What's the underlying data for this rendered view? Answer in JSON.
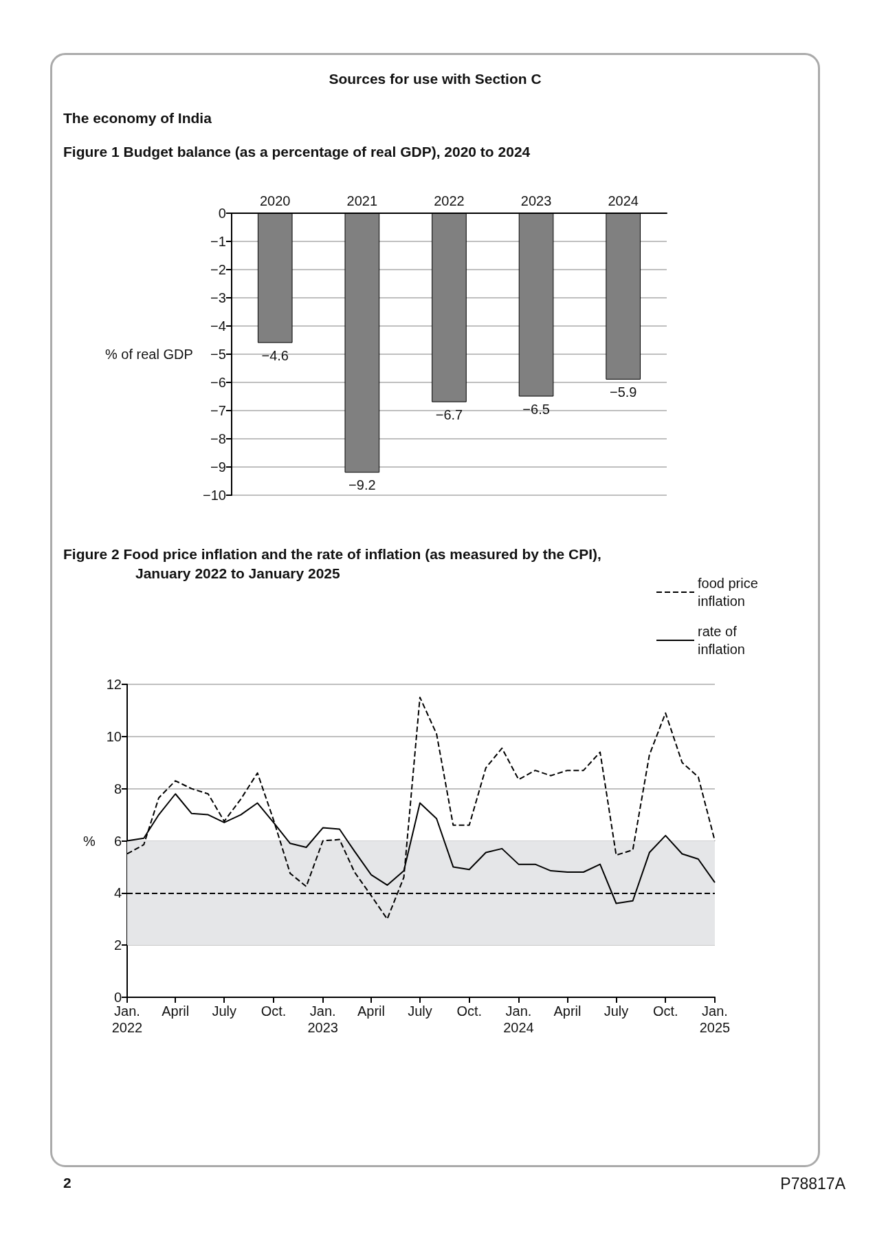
{
  "chart_data": [
    {
      "type": "bar",
      "title": "Figure 1  Budget balance (as a percentage of real GDP), 2020 to 2024",
      "annotations": [
        "Sources for use with Section C",
        "The economy of India"
      ],
      "ylabel": "% of real GDP",
      "categories": [
        "2020",
        "2021",
        "2022",
        "2023",
        "2024"
      ],
      "values": [
        -4.6,
        -9.2,
        -6.7,
        -6.5,
        -5.9
      ],
      "value_labels": [
        "−4.6",
        "−9.2",
        "−6.7",
        "−6.5",
        "−5.9"
      ],
      "color": "#808080",
      "ylim": [
        -10,
        0
      ],
      "yticks": [
        {
          "value": 0,
          "label": "0"
        },
        {
          "value": -1,
          "label": "−1"
        },
        {
          "value": -2,
          "label": "−2"
        },
        {
          "value": -3,
          "label": "−3"
        },
        {
          "value": -4,
          "label": "−4"
        },
        {
          "value": -5,
          "label": "−5"
        },
        {
          "value": -6,
          "label": "−6"
        },
        {
          "value": -7,
          "label": "−7"
        },
        {
          "value": -8,
          "label": "−8"
        },
        {
          "value": -9,
          "label": "−9"
        },
        {
          "value": -10,
          "label": "−10"
        }
      ],
      "grid": "y",
      "legend": false
    },
    {
      "type": "line",
      "title": "Figure 2  Food price inflation and the rate of inflation (as measured by the CPI), January 2022 to January 2025",
      "annotations": [
        "2",
        "P78817A"
      ],
      "ylabel": "%",
      "x": [
        "2022-01",
        "2022-02",
        "2022-03",
        "2022-04",
        "2022-05",
        "2022-06",
        "2022-07",
        "2022-08",
        "2022-09",
        "2022-10",
        "2022-11",
        "2022-12",
        "2023-01",
        "2023-02",
        "2023-03",
        "2023-04",
        "2023-05",
        "2023-06",
        "2023-07",
        "2023-08",
        "2023-09",
        "2023-10",
        "2023-11",
        "2023-12",
        "2024-01",
        "2024-02",
        "2024-03",
        "2024-04",
        "2024-05",
        "2024-06",
        "2024-07",
        "2024-08",
        "2024-09",
        "2024-10",
        "2024-11",
        "2024-12",
        "2025-01"
      ],
      "series": [
        {
          "name": "food price inflation",
          "color": "#000000",
          "line_style": "dashed",
          "values": [
            5.5,
            5.85,
            7.65,
            8.3,
            8.0,
            7.8,
            6.75,
            7.6,
            8.6,
            6.8,
            4.75,
            4.25,
            6.0,
            6.05,
            4.8,
            3.9,
            3.0,
            4.6,
            11.5,
            10.1,
            6.6,
            6.6,
            8.8,
            9.55,
            8.35,
            8.7,
            8.5,
            8.7,
            8.7,
            9.4,
            5.45,
            5.65,
            9.3,
            10.9,
            9.0,
            8.45,
            6.0
          ]
        },
        {
          "name": "rate of inflation",
          "color": "#000000",
          "line_style": "solid",
          "values": [
            6.0,
            6.1,
            7.0,
            7.8,
            7.05,
            7.0,
            6.7,
            7.0,
            7.45,
            6.7,
            5.9,
            5.75,
            6.5,
            6.45,
            5.6,
            4.7,
            4.3,
            4.85,
            7.45,
            6.85,
            5.0,
            4.9,
            5.55,
            5.7,
            5.1,
            5.1,
            4.85,
            4.8,
            4.8,
            5.1,
            3.6,
            3.7,
            5.55,
            6.2,
            5.5,
            5.3,
            4.4
          ]
        }
      ],
      "xlim": [
        "2022-01",
        "2025-01"
      ],
      "xticks": [
        {
          "value": "2022-01",
          "label": "Jan.\n2022"
        },
        {
          "value": "2022-04",
          "label": "April"
        },
        {
          "value": "2022-07",
          "label": "July"
        },
        {
          "value": "2022-10",
          "label": "Oct."
        },
        {
          "value": "2023-01",
          "label": "Jan.\n2023"
        },
        {
          "value": "2023-04",
          "label": "April"
        },
        {
          "value": "2023-07",
          "label": "July"
        },
        {
          "value": "2023-10",
          "label": "Oct."
        },
        {
          "value": "2024-01",
          "label": "Jan.\n2024"
        },
        {
          "value": "2024-04",
          "label": "April"
        },
        {
          "value": "2024-07",
          "label": "July"
        },
        {
          "value": "2024-10",
          "label": "Oct."
        },
        {
          "value": "2025-01",
          "label": "Jan.\n2025"
        }
      ],
      "ylim": [
        0,
        12
      ],
      "yticks": [
        0,
        2,
        4,
        6,
        8,
        10,
        12
      ],
      "bands": [
        {
          "axis": "y",
          "from": 2,
          "to": 6,
          "color": "#e5e6e8"
        }
      ],
      "ref_lines": [
        {
          "axis": "y",
          "value": 4,
          "color": "#000000",
          "line_style": "dashed"
        }
      ],
      "marker": "none",
      "grid": "y",
      "legend": "top right"
    }
  ]
}
